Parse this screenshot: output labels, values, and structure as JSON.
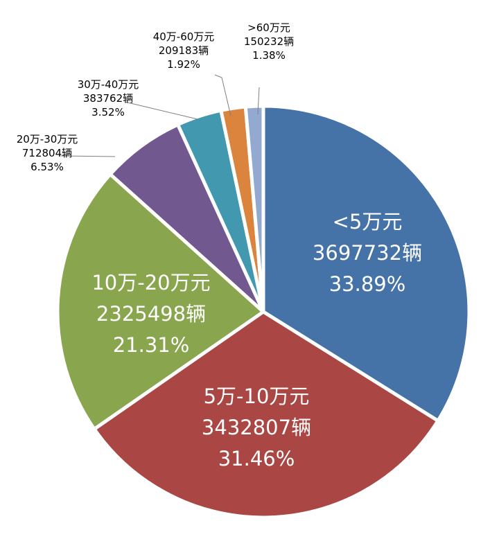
{
  "chart_data": {
    "type": "pie",
    "title": "",
    "start": "12 o'clock",
    "direction": "clockwise",
    "legend": "none",
    "series": [
      {
        "name": "<5万元",
        "count": "3697732辆",
        "value": 33.89,
        "percent": "33.89%",
        "color": "#4572A7",
        "label_placement": "inside"
      },
      {
        "name": "5万-10万元",
        "count": "3432807辆",
        "value": 31.46,
        "percent": "31.46%",
        "color": "#AA4643",
        "label_placement": "inside"
      },
      {
        "name": "10万-20万元",
        "count": "2325498辆",
        "value": 21.31,
        "percent": "21.31%",
        "color": "#89A54E",
        "label_placement": "inside"
      },
      {
        "name": "20万-30万元",
        "count": "712804辆",
        "value": 6.53,
        "percent": "6.53%",
        "color": "#71588F",
        "label_placement": "outside"
      },
      {
        "name": "30万-40万元",
        "count": "383762辆",
        "value": 3.52,
        "percent": "3.52%",
        "color": "#4198AF",
        "label_placement": "outside"
      },
      {
        "name": "40万-60万元",
        "count": "209183辆",
        "value": 1.92,
        "percent": "1.92%",
        "color": "#DB843D",
        "label_placement": "outside"
      },
      {
        "name": ">60万元",
        "count": "150232辆",
        "value": 1.38,
        "percent": "1.38%",
        "color": "#93A9CF",
        "label_placement": "outside"
      }
    ]
  }
}
